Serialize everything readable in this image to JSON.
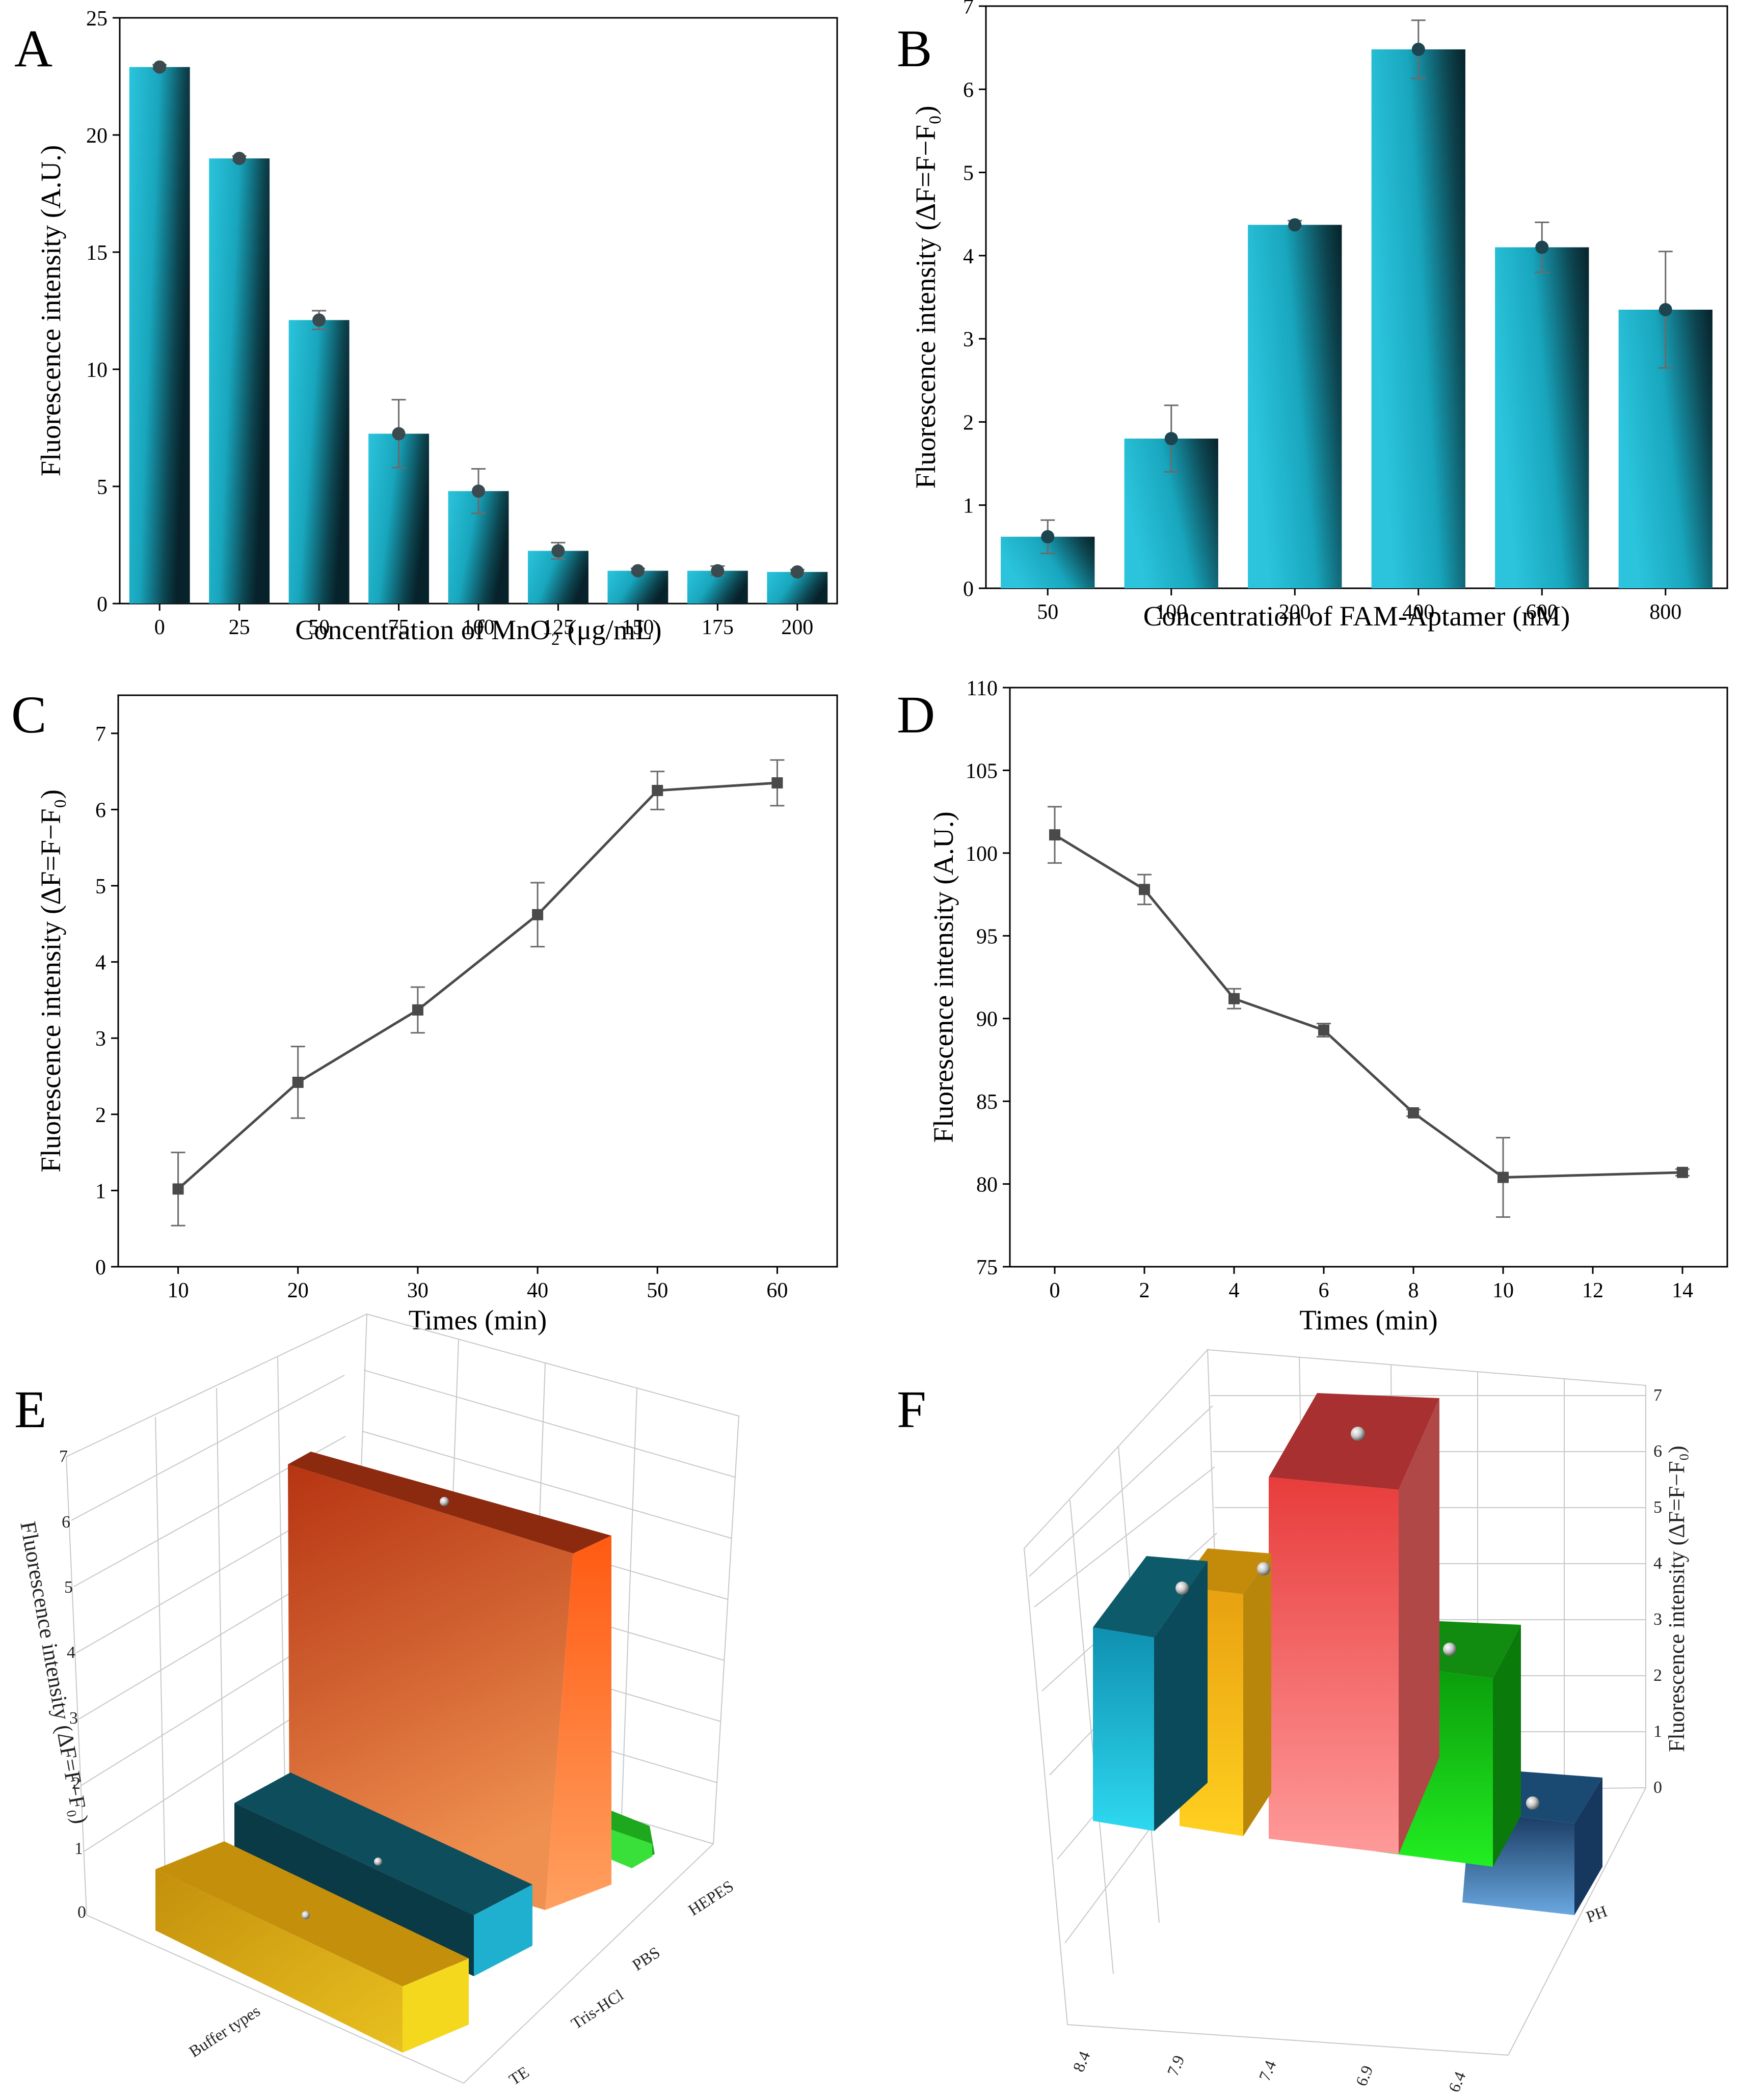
{
  "figure": {
    "panels": [
      "A",
      "B",
      "C",
      "D",
      "E",
      "F"
    ]
  },
  "chart_data": [
    {
      "panel": "A",
      "type": "bar",
      "categories": [
        "0",
        "25",
        "50",
        "75",
        "100",
        "125",
        "150",
        "175",
        "200"
      ],
      "values": [
        22.9,
        19.0,
        12.1,
        7.25,
        4.8,
        2.25,
        1.4,
        1.4,
        1.35
      ],
      "errors": [
        0.1,
        0.1,
        0.4,
        1.45,
        0.95,
        0.35,
        0.1,
        0.2,
        0.1
      ],
      "title": "",
      "xlabel": "Concentration of MnO₂ (μg/mL)",
      "ylabel": "Fluorescence intensity (A.U.)",
      "ylim": [
        0,
        25
      ],
      "yticks": [
        "0",
        "5",
        "10",
        "15",
        "20",
        "25"
      ],
      "colors": {
        "bar_light": "#2bc4dc",
        "bar_dark": "#0c2e38",
        "marker": "#3a4a4f"
      }
    },
    {
      "panel": "B",
      "type": "bar",
      "categories": [
        "50",
        "100",
        "200",
        "400",
        "600",
        "800"
      ],
      "values": [
        0.62,
        1.8,
        4.37,
        6.48,
        4.1,
        3.35
      ],
      "errors": [
        0.2,
        0.4,
        0.05,
        0.35,
        0.3,
        0.7
      ],
      "title": "",
      "xlabel": "Concentration of FAM-Aptamer (nM)",
      "ylabel": "Fluorescence intensity (ΔF=F−F₀)",
      "ylim": [
        0,
        7
      ],
      "yticks": [
        "0",
        "1",
        "2",
        "3",
        "4",
        "5",
        "6",
        "7"
      ],
      "colors": {
        "bar_light": "#2bc4dc",
        "bar_dark": "#0c2e38",
        "marker": "#1c4550"
      }
    },
    {
      "panel": "C",
      "type": "line",
      "x": [
        10,
        20,
        30,
        40,
        50,
        60
      ],
      "y": [
        1.02,
        2.42,
        3.37,
        4.62,
        6.25,
        6.35
      ],
      "errors": [
        0.48,
        0.47,
        0.3,
        0.42,
        0.25,
        0.3
      ],
      "title": "",
      "xlabel": "Times (min)",
      "ylabel": "Fluorescence intensity (ΔF=F−F₀)",
      "xlim": [
        5,
        65
      ],
      "ylim": [
        0,
        7.5
      ],
      "xticks": [
        "10",
        "20",
        "30",
        "40",
        "50",
        "60"
      ],
      "yticks": [
        "0",
        "1",
        "2",
        "3",
        "4",
        "5",
        "6",
        "7"
      ],
      "colors": {
        "line": "#4a4a4a"
      }
    },
    {
      "panel": "D",
      "type": "line",
      "x": [
        0,
        2,
        4,
        6,
        8,
        10,
        14
      ],
      "y": [
        101.1,
        97.8,
        91.2,
        89.3,
        84.3,
        80.4,
        80.7
      ],
      "errors": [
        1.7,
        0.9,
        0.6,
        0.4,
        0.2,
        2.4,
        0.2
      ],
      "title": "",
      "xlabel": "Times (min)",
      "ylabel": "Fluorescence intensity (A.U.)",
      "xlim": [
        -1,
        15
      ],
      "ylim": [
        75,
        110
      ],
      "xticks": [
        "0",
        "2",
        "4",
        "6",
        "8",
        "10",
        "12",
        "14"
      ],
      "yticks": [
        "75",
        "80",
        "85",
        "90",
        "95",
        "100",
        "105",
        "110"
      ],
      "colors": {
        "line": "#4a4a4a"
      }
    },
    {
      "panel": "E",
      "type": "bar",
      "categories": [
        "TE",
        "Tris-HCl",
        "PBS",
        "HEPES"
      ],
      "values": [
        0.45,
        0.55,
        6.45,
        0.3
      ],
      "title": "",
      "xlabel": "Buffer types",
      "ylabel": "Fluorescence intensity (ΔF=F−F₀)",
      "ylim": [
        0,
        7
      ],
      "yticks": [
        "0",
        "1",
        "2",
        "3",
        "4",
        "5",
        "6",
        "7"
      ],
      "colors": {
        "TE": "#c49a18",
        "Tris-HCl": "#0d4d5c",
        "PBS": "#d9531e",
        "HEPES": "#22c022"
      }
    },
    {
      "panel": "F",
      "type": "bar",
      "categories": [
        "8.4",
        "7.9",
        "7.4",
        "6.9",
        "6.4"
      ],
      "values": [
        2.9,
        3.6,
        5.45,
        2.65,
        1.75
      ],
      "title": "",
      "xlabel": "",
      "ylabel": "Fluorescence intensity (ΔF=F−F₀)",
      "zlabel": "PH",
      "ylim": [
        0,
        7
      ],
      "yticks": [
        "0",
        "1",
        "2",
        "3",
        "4",
        "5",
        "6",
        "7"
      ],
      "colors": {
        "8.4": "#1ab6d6",
        "7.9": "#e8a510",
        "7.4": "#e84a4a",
        "6.9": "#10b010",
        "6.4": "#16375e"
      }
    }
  ]
}
